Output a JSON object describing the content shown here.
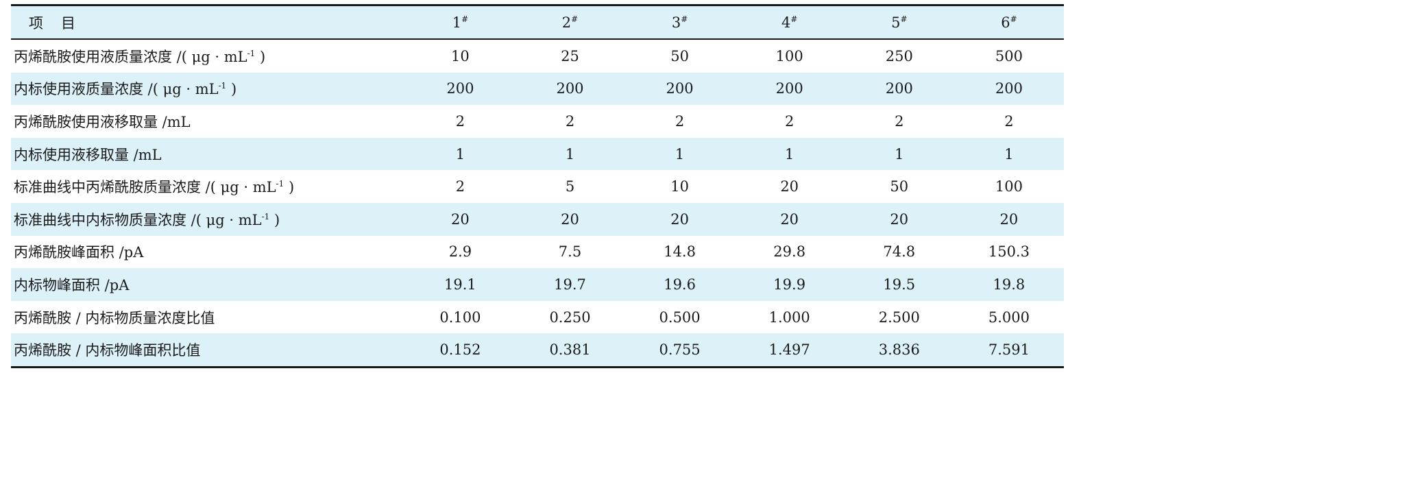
{
  "table": {
    "header": {
      "item_label": "项目",
      "columns": [
        {
          "num": "1",
          "sup": "#"
        },
        {
          "num": "2",
          "sup": "#"
        },
        {
          "num": "3",
          "sup": "#"
        },
        {
          "num": "4",
          "sup": "#"
        },
        {
          "num": "5",
          "sup": "#"
        },
        {
          "num": "6",
          "sup": "#"
        }
      ]
    },
    "rows": [
      {
        "pre": "丙烯酰胺使用液质量浓度 /( μg · mL",
        "sup": "-1",
        "post": " )",
        "values": [
          "10",
          "25",
          "50",
          "100",
          "250",
          "500"
        ]
      },
      {
        "pre": "内标使用液质量浓度 /( μg · mL",
        "sup": "-1",
        "post": " )",
        "values": [
          "200",
          "200",
          "200",
          "200",
          "200",
          "200"
        ]
      },
      {
        "pre": "丙烯酰胺使用液移取量 /mL",
        "sup": "",
        "post": "",
        "values": [
          "2",
          "2",
          "2",
          "2",
          "2",
          "2"
        ]
      },
      {
        "pre": "内标使用液移取量 /mL",
        "sup": "",
        "post": "",
        "values": [
          "1",
          "1",
          "1",
          "1",
          "1",
          "1"
        ]
      },
      {
        "pre": "标准曲线中丙烯酰胺质量浓度 /( μg · mL",
        "sup": "-1",
        "post": " )",
        "values": [
          "2",
          "5",
          "10",
          "20",
          "50",
          "100"
        ]
      },
      {
        "pre": "标准曲线中内标物质量浓度 /( μg · mL",
        "sup": "-1",
        "post": " )",
        "values": [
          "20",
          "20",
          "20",
          "20",
          "20",
          "20"
        ]
      },
      {
        "pre": "丙烯酰胺峰面积 /pA",
        "sup": "",
        "post": "",
        "values": [
          "2.9",
          "7.5",
          "14.8",
          "29.8",
          "74.8",
          "150.3"
        ]
      },
      {
        "pre": "内标物峰面积 /pA",
        "sup": "",
        "post": "",
        "values": [
          "19.1",
          "19.7",
          "19.6",
          "19.9",
          "19.5",
          "19.8"
        ]
      },
      {
        "pre": "丙烯酰胺 / 内标物质量浓度比值",
        "sup": "",
        "post": "",
        "values": [
          "0.100",
          "0.250",
          "0.500",
          "1.000",
          "2.500",
          "5.000"
        ]
      },
      {
        "pre": "丙烯酰胺 / 内标物峰面积比值",
        "sup": "",
        "post": "",
        "values": [
          "0.152",
          "0.381",
          "0.755",
          "1.497",
          "3.836",
          "7.591"
        ]
      }
    ]
  }
}
